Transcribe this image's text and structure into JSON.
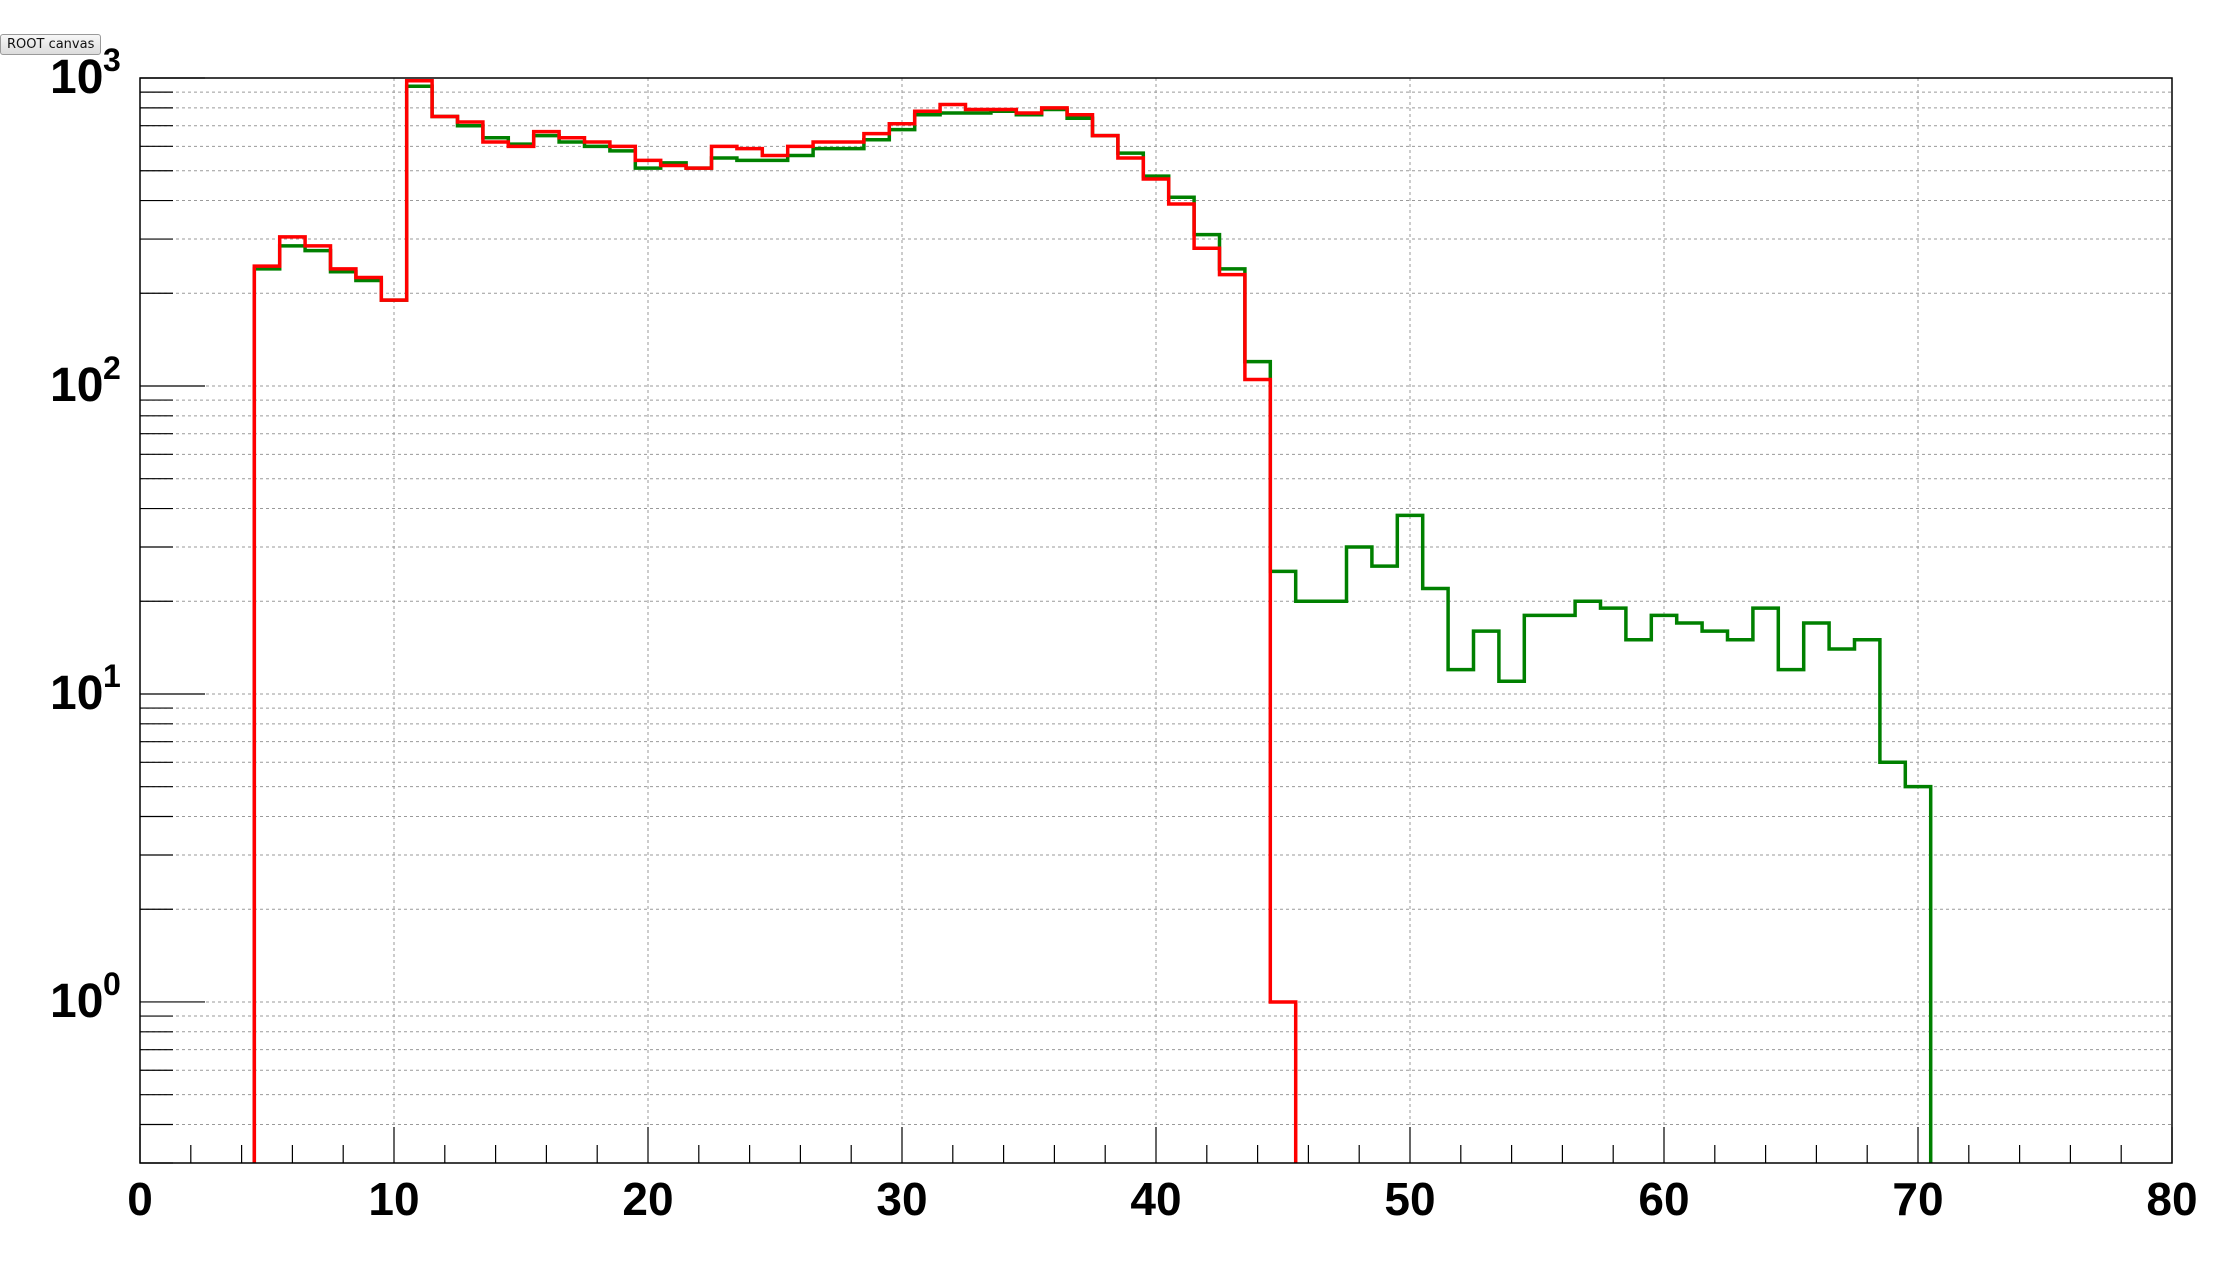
{
  "window": {
    "tab_label": "ROOT canvas"
  },
  "chart_data": {
    "type": "line",
    "xlim": [
      0,
      80
    ],
    "ylim": [
      0.3,
      1000
    ],
    "yscale": "log",
    "grid": true,
    "legend": "none",
    "x_ticks": [
      0,
      10,
      20,
      30,
      40,
      50,
      60,
      70,
      80
    ],
    "x_tick_labels": [
      "0",
      "10",
      "20",
      "30",
      "40",
      "50",
      "60",
      "70",
      "80"
    ],
    "y_tick_values": [
      1,
      10,
      100,
      1000
    ],
    "y_tick_bases": [
      "10",
      "10",
      "10",
      "10"
    ],
    "y_tick_exponents": [
      "0",
      "1",
      "2",
      "3"
    ],
    "bin_edges": [
      4.5,
      5.5,
      6.5,
      7.5,
      8.5,
      9.5,
      10.5,
      11.5,
      12.5,
      13.5,
      14.5,
      15.5,
      16.5,
      17.5,
      18.5,
      19.5,
      20.5,
      21.5,
      22.5,
      23.5,
      24.5,
      25.5,
      26.5,
      27.5,
      28.5,
      29.5,
      30.5,
      31.5,
      32.5,
      33.5,
      34.5,
      35.5,
      36.5,
      37.5,
      38.5,
      39.5,
      40.5,
      41.5,
      42.5,
      43.5,
      44.5,
      45.5,
      46.5,
      47.5,
      48.5,
      49.5,
      50.5,
      51.5,
      52.5,
      53.5,
      54.5,
      55.5,
      56.5,
      57.5,
      58.5,
      59.5,
      60.5,
      61.5,
      62.5,
      63.5,
      64.5,
      65.5,
      66.5,
      67.5,
      68.5,
      69.5,
      70.5,
      71.5
    ],
    "series": [
      {
        "color": "#008000",
        "values": [
          240,
          285,
          275,
          235,
          220,
          190,
          940,
          750,
          700,
          640,
          610,
          650,
          620,
          600,
          580,
          510,
          530,
          510,
          550,
          540,
          540,
          560,
          590,
          590,
          630,
          680,
          760,
          770,
          770,
          780,
          760,
          790,
          740,
          650,
          570,
          480,
          410,
          310,
          240,
          120,
          25,
          20,
          20,
          30,
          26,
          38,
          22,
          12,
          16,
          11,
          18,
          18,
          20,
          19,
          15,
          18,
          17,
          16,
          15,
          19,
          12,
          17,
          14,
          15,
          6,
          5
        ]
      },
      {
        "color": "#ff0000",
        "values": [
          245,
          305,
          285,
          240,
          225,
          190,
          980,
          750,
          720,
          620,
          600,
          670,
          640,
          620,
          600,
          540,
          520,
          510,
          600,
          590,
          560,
          600,
          620,
          620,
          660,
          710,
          780,
          820,
          790,
          790,
          770,
          800,
          760,
          650,
          550,
          470,
          390,
          280,
          230,
          105,
          1
        ]
      }
    ]
  }
}
